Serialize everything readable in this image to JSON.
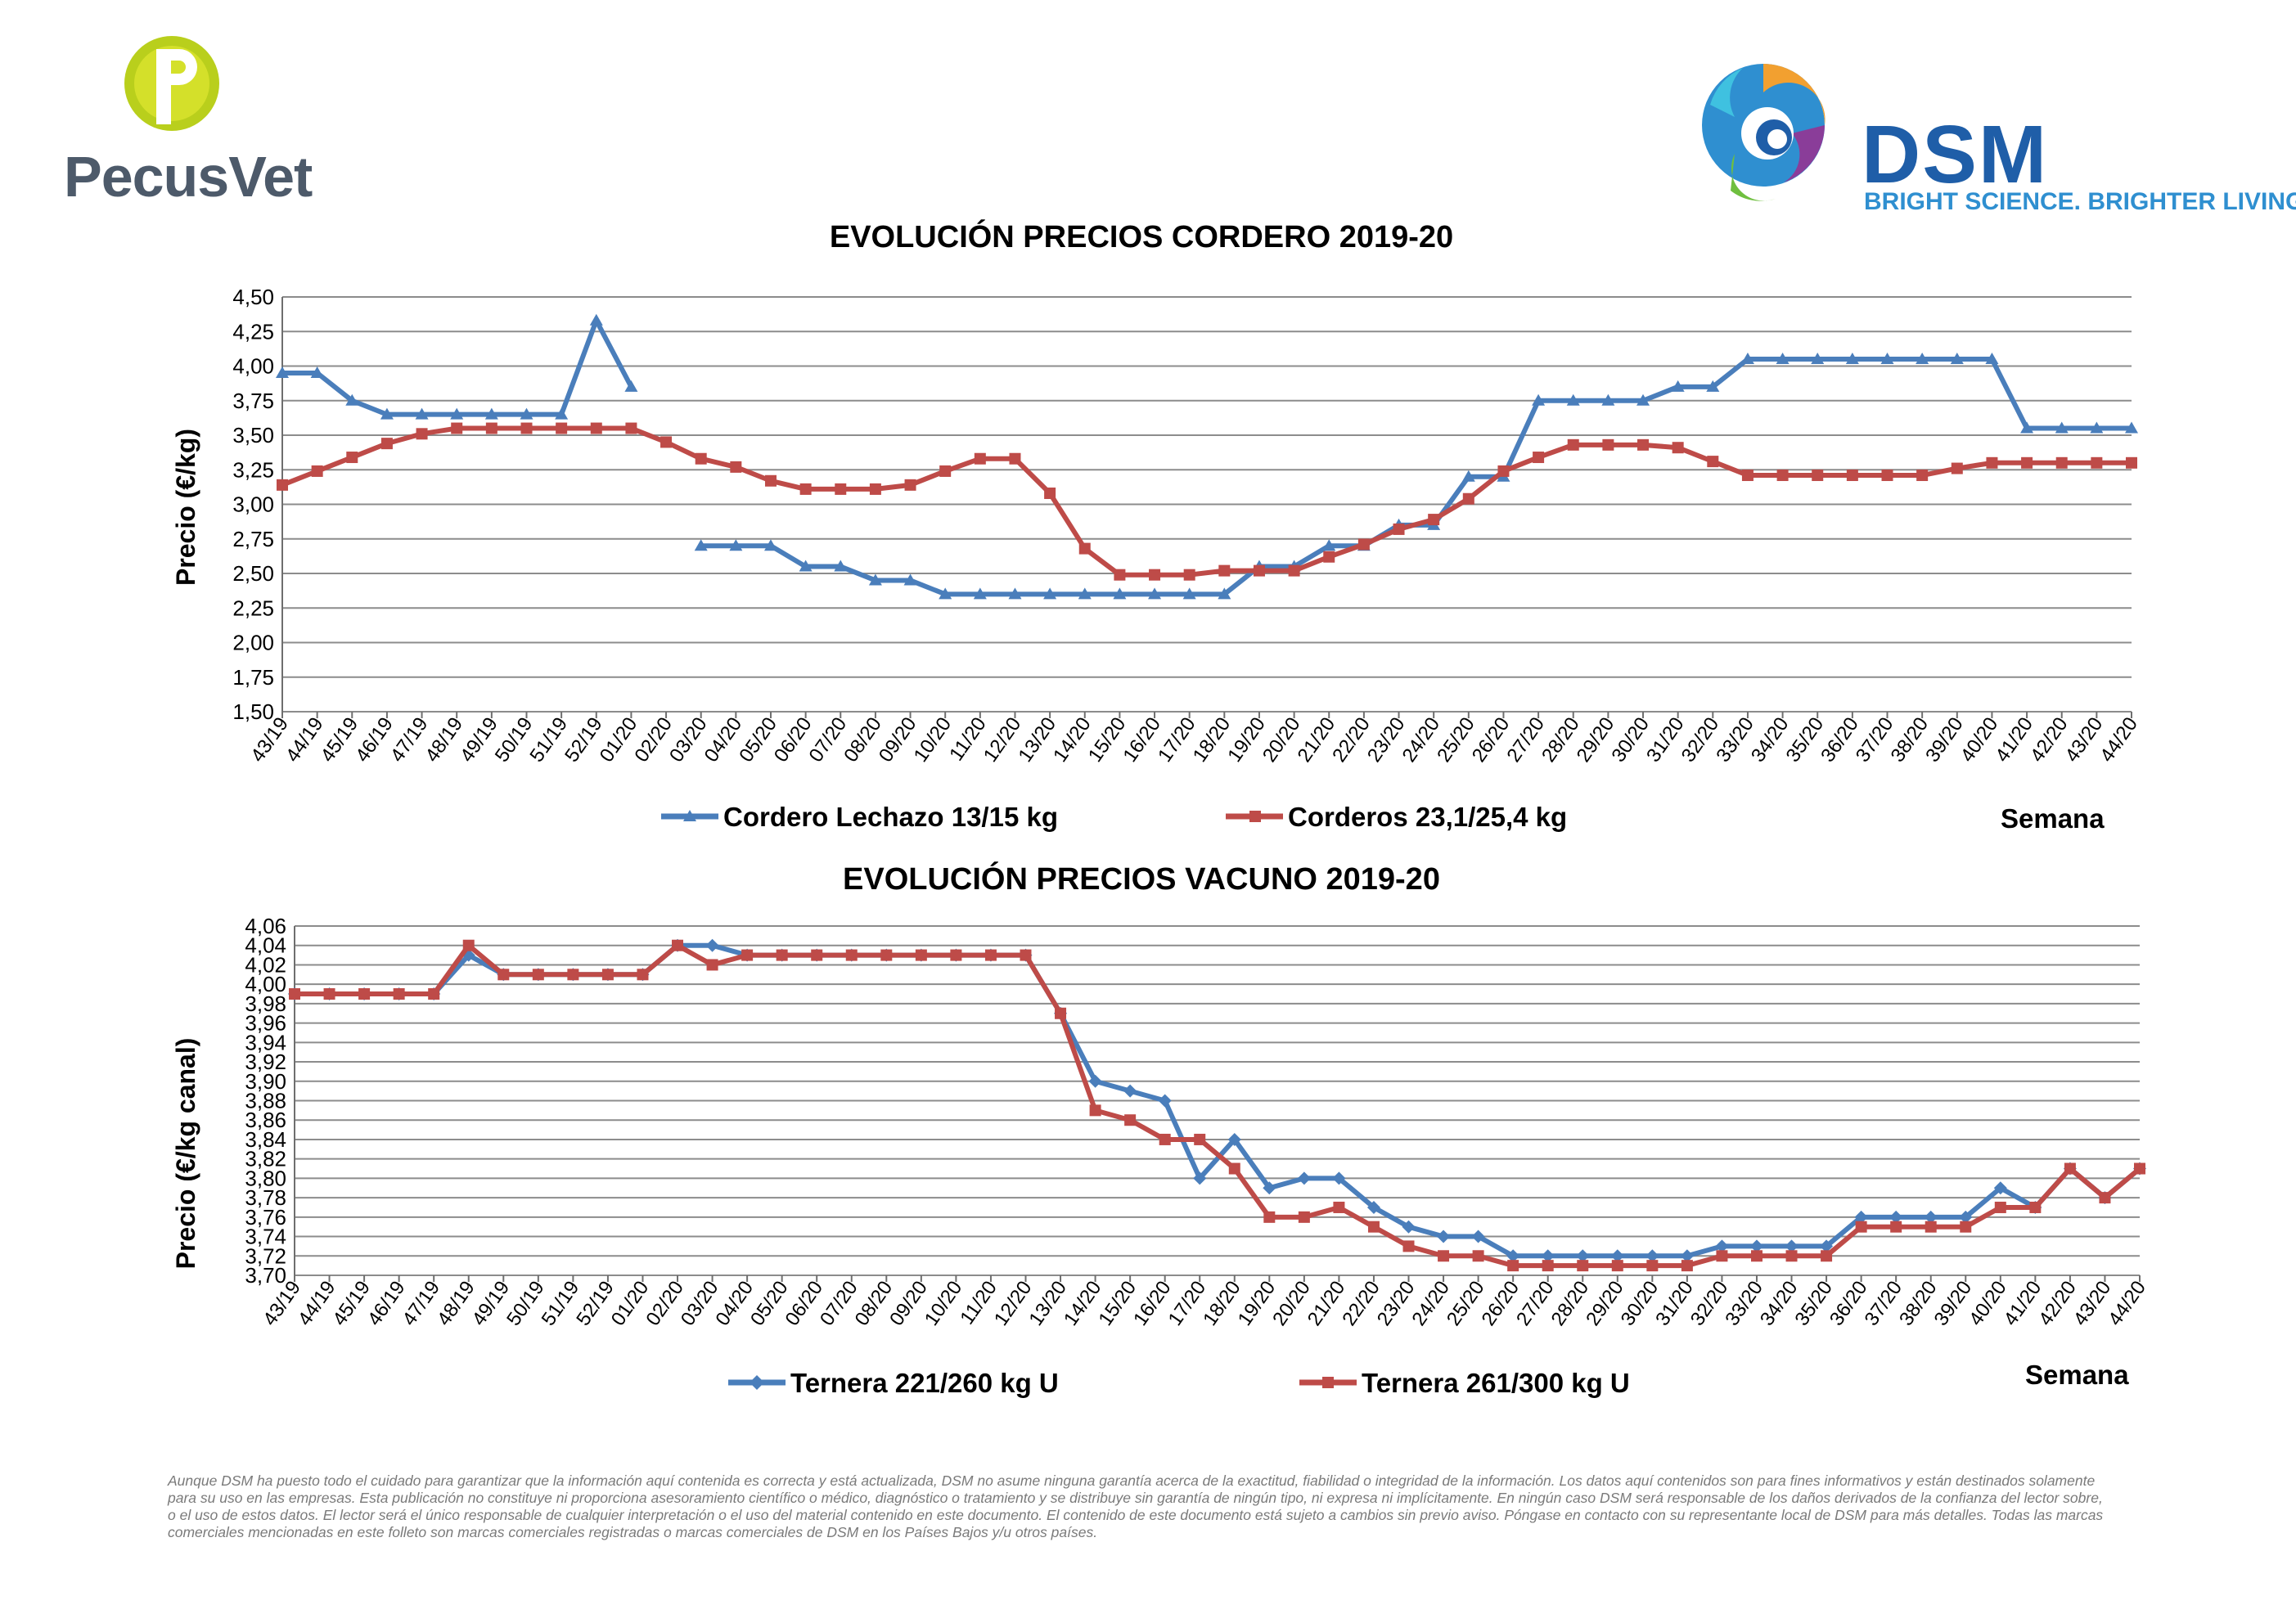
{
  "logos": {
    "pecusvet": "PecusVet",
    "dsm": "DSM",
    "dsm_tagline": "BRIGHT SCIENCE. BRIGHTER LIVING."
  },
  "chart_data": [
    {
      "type": "line",
      "title": "EVOLUCIÓN PRECIOS CORDERO 2019-20",
      "ylabel": "Precio (€/kg)",
      "xlabel": "Semana",
      "ylim": [
        1.5,
        4.5
      ],
      "yticks": [
        "1,50",
        "1,75",
        "2,00",
        "2,25",
        "2,50",
        "2,75",
        "3,00",
        "3,25",
        "3,50",
        "3,75",
        "4,00",
        "4,25",
        "4,50"
      ],
      "grid": true,
      "legend_position": "bottom",
      "categories": [
        "43/19",
        "44/19",
        "45/19",
        "46/19",
        "47/19",
        "48/19",
        "49/19",
        "50/19",
        "51/19",
        "52/19",
        "01/20",
        "02/20",
        "03/20",
        "04/20",
        "05/20",
        "06/20",
        "07/20",
        "08/20",
        "09/20",
        "10/20",
        "11/20",
        "12/20",
        "13/20",
        "14/20",
        "15/20",
        "16/20",
        "17/20",
        "18/20",
        "19/20",
        "20/20",
        "21/20",
        "22/20",
        "23/20",
        "24/20",
        "25/20",
        "26/20",
        "27/20",
        "28/20",
        "29/20",
        "30/20",
        "31/20",
        "32/20",
        "33/20",
        "34/20",
        "35/20",
        "36/20",
        "37/20",
        "38/20",
        "39/20",
        "40/20",
        "41/20",
        "42/20",
        "43/20",
        "44/20"
      ],
      "series": [
        {
          "name": "Cordero Lechazo 13/15 kg",
          "color": "#4a7ebb",
          "marker": "triangle",
          "values": [
            3.95,
            3.95,
            3.75,
            3.65,
            3.65,
            3.65,
            3.65,
            3.65,
            3.65,
            4.33,
            3.85,
            null,
            2.7,
            2.7,
            2.7,
            2.55,
            2.55,
            2.45,
            2.45,
            2.35,
            2.35,
            2.35,
            2.35,
            2.35,
            2.35,
            2.35,
            2.35,
            2.35,
            2.55,
            2.55,
            2.7,
            2.7,
            2.85,
            2.85,
            3.2,
            3.2,
            3.75,
            3.75,
            3.75,
            3.75,
            3.85,
            3.85,
            4.05,
            4.05,
            4.05,
            4.05,
            4.05,
            4.05,
            4.05,
            4.05,
            3.55,
            3.55,
            3.55,
            3.55
          ]
        },
        {
          "name": "Corderos 23,1/25,4 kg",
          "color": "#be4b48",
          "marker": "square",
          "values": [
            3.14,
            3.24,
            3.34,
            3.44,
            3.51,
            3.55,
            3.55,
            3.55,
            3.55,
            3.55,
            3.55,
            3.45,
            3.33,
            3.27,
            3.17,
            3.11,
            3.11,
            3.11,
            3.14,
            3.24,
            3.33,
            3.33,
            3.08,
            2.68,
            2.49,
            2.49,
            2.49,
            2.52,
            2.52,
            2.52,
            2.62,
            2.71,
            2.82,
            2.89,
            3.04,
            3.24,
            3.34,
            3.43,
            3.43,
            3.43,
            3.41,
            3.31,
            3.21,
            3.21,
            3.21,
            3.21,
            3.21,
            3.21,
            3.26,
            3.3,
            3.3,
            3.3,
            3.3,
            3.3
          ]
        }
      ]
    },
    {
      "type": "line",
      "title": "EVOLUCIÓN PRECIOS VACUNO 2019-20",
      "ylabel": "Precio (€/kg canal)",
      "xlabel": "Semana",
      "ylim": [
        3.7,
        4.06
      ],
      "yticks": [
        "3,70",
        "3,72",
        "3,74",
        "3,76",
        "3,78",
        "3,80",
        "3,82",
        "3,84",
        "3,86",
        "3,88",
        "3,90",
        "3,92",
        "3,94",
        "3,96",
        "3,98",
        "4,00",
        "4,02",
        "4,04",
        "4,06"
      ],
      "grid": true,
      "legend_position": "bottom",
      "categories": [
        "43/19",
        "44/19",
        "45/19",
        "46/19",
        "47/19",
        "48/19",
        "49/19",
        "50/19",
        "51/19",
        "52/19",
        "01/20",
        "02/20",
        "03/20",
        "04/20",
        "05/20",
        "06/20",
        "07/20",
        "08/20",
        "09/20",
        "10/20",
        "11/20",
        "12/20",
        "13/20",
        "14/20",
        "15/20",
        "16/20",
        "17/20",
        "18/20",
        "19/20",
        "20/20",
        "21/20",
        "22/20",
        "23/20",
        "24/20",
        "25/20",
        "26/20",
        "27/20",
        "28/20",
        "29/20",
        "30/20",
        "31/20",
        "32/20",
        "33/20",
        "34/20",
        "35/20",
        "36/20",
        "37/20",
        "38/20",
        "39/20",
        "40/20",
        "41/20",
        "42/20",
        "43/20",
        "44/20"
      ],
      "series": [
        {
          "name": "Ternera 221/260 kg U",
          "color": "#4a7ebb",
          "marker": "diamond",
          "values": [
            3.99,
            3.99,
            3.99,
            3.99,
            3.99,
            4.03,
            4.01,
            4.01,
            4.01,
            4.01,
            4.01,
            4.04,
            4.04,
            4.03,
            4.03,
            4.03,
            4.03,
            4.03,
            4.03,
            4.03,
            4.03,
            4.03,
            3.97,
            3.9,
            3.89,
            3.88,
            3.8,
            3.84,
            3.79,
            3.8,
            3.8,
            3.77,
            3.75,
            3.74,
            3.74,
            3.72,
            3.72,
            3.72,
            3.72,
            3.72,
            3.72,
            3.73,
            3.73,
            3.73,
            3.73,
            3.76,
            3.76,
            3.76,
            3.76,
            3.79,
            3.77,
            3.81,
            3.78,
            3.81
          ]
        },
        {
          "name": "Ternera 261/300 kg U",
          "color": "#be4b48",
          "marker": "square",
          "values": [
            3.99,
            3.99,
            3.99,
            3.99,
            3.99,
            4.04,
            4.01,
            4.01,
            4.01,
            4.01,
            4.01,
            4.04,
            4.02,
            4.03,
            4.03,
            4.03,
            4.03,
            4.03,
            4.03,
            4.03,
            4.03,
            4.03,
            3.97,
            3.87,
            3.86,
            3.84,
            3.84,
            3.81,
            3.76,
            3.76,
            3.77,
            3.75,
            3.73,
            3.72,
            3.72,
            3.71,
            3.71,
            3.71,
            3.71,
            3.71,
            3.71,
            3.72,
            3.72,
            3.72,
            3.72,
            3.75,
            3.75,
            3.75,
            3.75,
            3.77,
            3.77,
            3.81,
            3.78,
            3.81
          ]
        }
      ]
    }
  ],
  "disclaimer": "Aunque DSM ha puesto todo el cuidado para garantizar que la información aquí contenida es correcta y está actualizada, DSM no asume ninguna garantía acerca de la exactitud, fiabilidad o integridad de la información. Los datos aquí contenidos son para fines informativos y están destinados solamente para su uso en las empresas. Esta publicación no constituye ni proporciona asesoramiento científico o médico, diagnóstico o tratamiento y se distribuye sin garantía de ningún tipo, ni expresa ni implícitamente. En ningún caso DSM será responsable de los daños derivados de la confianza del lector sobre, o el uso de estos datos. El lector será el único responsable de cualquier interpretación o el uso del material contenido en este documento. El contenido de este documento está sujeto a cambios sin previo aviso. Póngase en contacto con su representante local de DSM para más detalles. Todas las marcas comerciales mencionadas en este folleto son marcas comerciales registradas o marcas comerciales de DSM en los Países Bajos y/u otros países."
}
